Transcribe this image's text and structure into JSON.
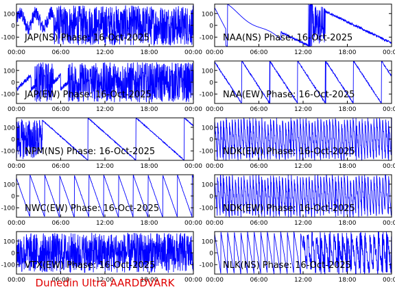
{
  "footer": "Dunedin Ultra AARDDVARK",
  "colors": {
    "trace": "#0000ff",
    "axis": "#000000",
    "footer": "#e00000"
  },
  "chart_data": [
    {
      "type": "line",
      "station": "JAP",
      "orientation": "NS",
      "title": "JAP(NS) Phase: 16-Oct-2025",
      "x_ticks": [
        "00:00",
        "06:00",
        "12:00",
        "18:00",
        "00:00"
      ],
      "y_ticks": [
        "-100",
        "0",
        "100"
      ],
      "ylim": [
        -180,
        180
      ],
      "pattern": "saturated-after-0500"
    },
    {
      "type": "line",
      "station": "NAA",
      "orientation": "NS",
      "title": "NAA(NS) Phase: 16-Oct-2025",
      "x_ticks": [
        "00:00",
        "06:00",
        "12:00",
        "18:00",
        "00:00"
      ],
      "y_ticks": [
        "-100",
        "0",
        "100"
      ],
      "ylim": [
        -180,
        180
      ],
      "pattern": "slow-drift-with-noise-1330-1500"
    },
    {
      "type": "line",
      "station": "JAP",
      "orientation": "EW",
      "title": "JAP(EW) Phase: 16-Oct-2025",
      "x_ticks": [
        "00:00",
        "06:00",
        "12:00",
        "18:00",
        "00:00"
      ],
      "y_ticks": [
        "-100",
        "0",
        "100"
      ],
      "ylim": [
        -180,
        180
      ],
      "pattern": "saturated-0230-0500-and-after-0700"
    },
    {
      "type": "line",
      "station": "NAA",
      "orientation": "EW",
      "title": "NAA(EW) Phase: 16-Oct-2025",
      "x_ticks": [
        "00:00",
        "06:00",
        "12:00",
        "18:00",
        "00:00"
      ],
      "y_ticks": [
        "-100",
        "0",
        "100"
      ],
      "ylim": [
        -180,
        180
      ],
      "pattern": "sawtooth-wraps"
    },
    {
      "type": "line",
      "station": "NPM",
      "orientation": "NS",
      "title": "NPM(NS) Phase: 16-Oct-2025",
      "x_ticks": [
        "00:00",
        "06:00",
        "12:00",
        "18:00",
        "00:00"
      ],
      "y_ticks": [
        "-100",
        "0",
        "100"
      ],
      "ylim": [
        -180,
        180
      ],
      "pattern": "noisy-early-then-descending-ramps"
    },
    {
      "type": "line",
      "station": "NDK",
      "orientation": "EW",
      "title": "NDK(EW) Phase: 16-Oct-2025",
      "x_ticks": [
        "00:00",
        "06:00",
        "12:00",
        "18:00",
        "00:00"
      ],
      "y_ticks": [
        "-100",
        "0",
        "100"
      ],
      "ylim": [
        -180,
        180
      ],
      "pattern": "dense-oscillation"
    },
    {
      "type": "line",
      "station": "NWC",
      "orientation": "EW",
      "title": "NWC(EW) Phase: 16-Oct-2025",
      "x_ticks": [
        "00:00",
        "06:00",
        "12:00",
        "18:00",
        "00:00"
      ],
      "y_ticks": [
        "-100",
        "0",
        "100"
      ],
      "ylim": [
        -180,
        180
      ],
      "pattern": "regular-sawtooth"
    },
    {
      "type": "line",
      "station": "NDK",
      "orientation": "EW",
      "title": "NDK(EW) Phase: 16-Oct-2025",
      "x_ticks": [
        "00:00",
        "06:00",
        "12:00",
        "18:00",
        "00:00"
      ],
      "y_ticks": [
        "-100",
        "0",
        "100"
      ],
      "ylim": [
        -180,
        180
      ],
      "pattern": "dense-oscillation"
    },
    {
      "type": "line",
      "station": "VTX",
      "orientation": "EW",
      "title": "VTX(EW) Phase: 16-Oct-2025",
      "x_ticks": [
        "00:00",
        "06:00",
        "12:00",
        "18:00",
        "00:00"
      ],
      "y_ticks": [
        "-100",
        "0",
        "100"
      ],
      "ylim": [
        -180,
        180
      ],
      "pattern": "fully-saturated"
    },
    {
      "type": "line",
      "station": "NLK",
      "orientation": "NS",
      "title": "NLK(NS) Phase: 16-Oct-2025",
      "x_ticks": [
        "00:00",
        "06:00",
        "12:00",
        "18:00",
        "00:00"
      ],
      "y_ticks": [
        "-100",
        "0",
        "100"
      ],
      "ylim": [
        -180,
        180
      ],
      "pattern": "fast-sawtooth-then-noisy"
    }
  ]
}
